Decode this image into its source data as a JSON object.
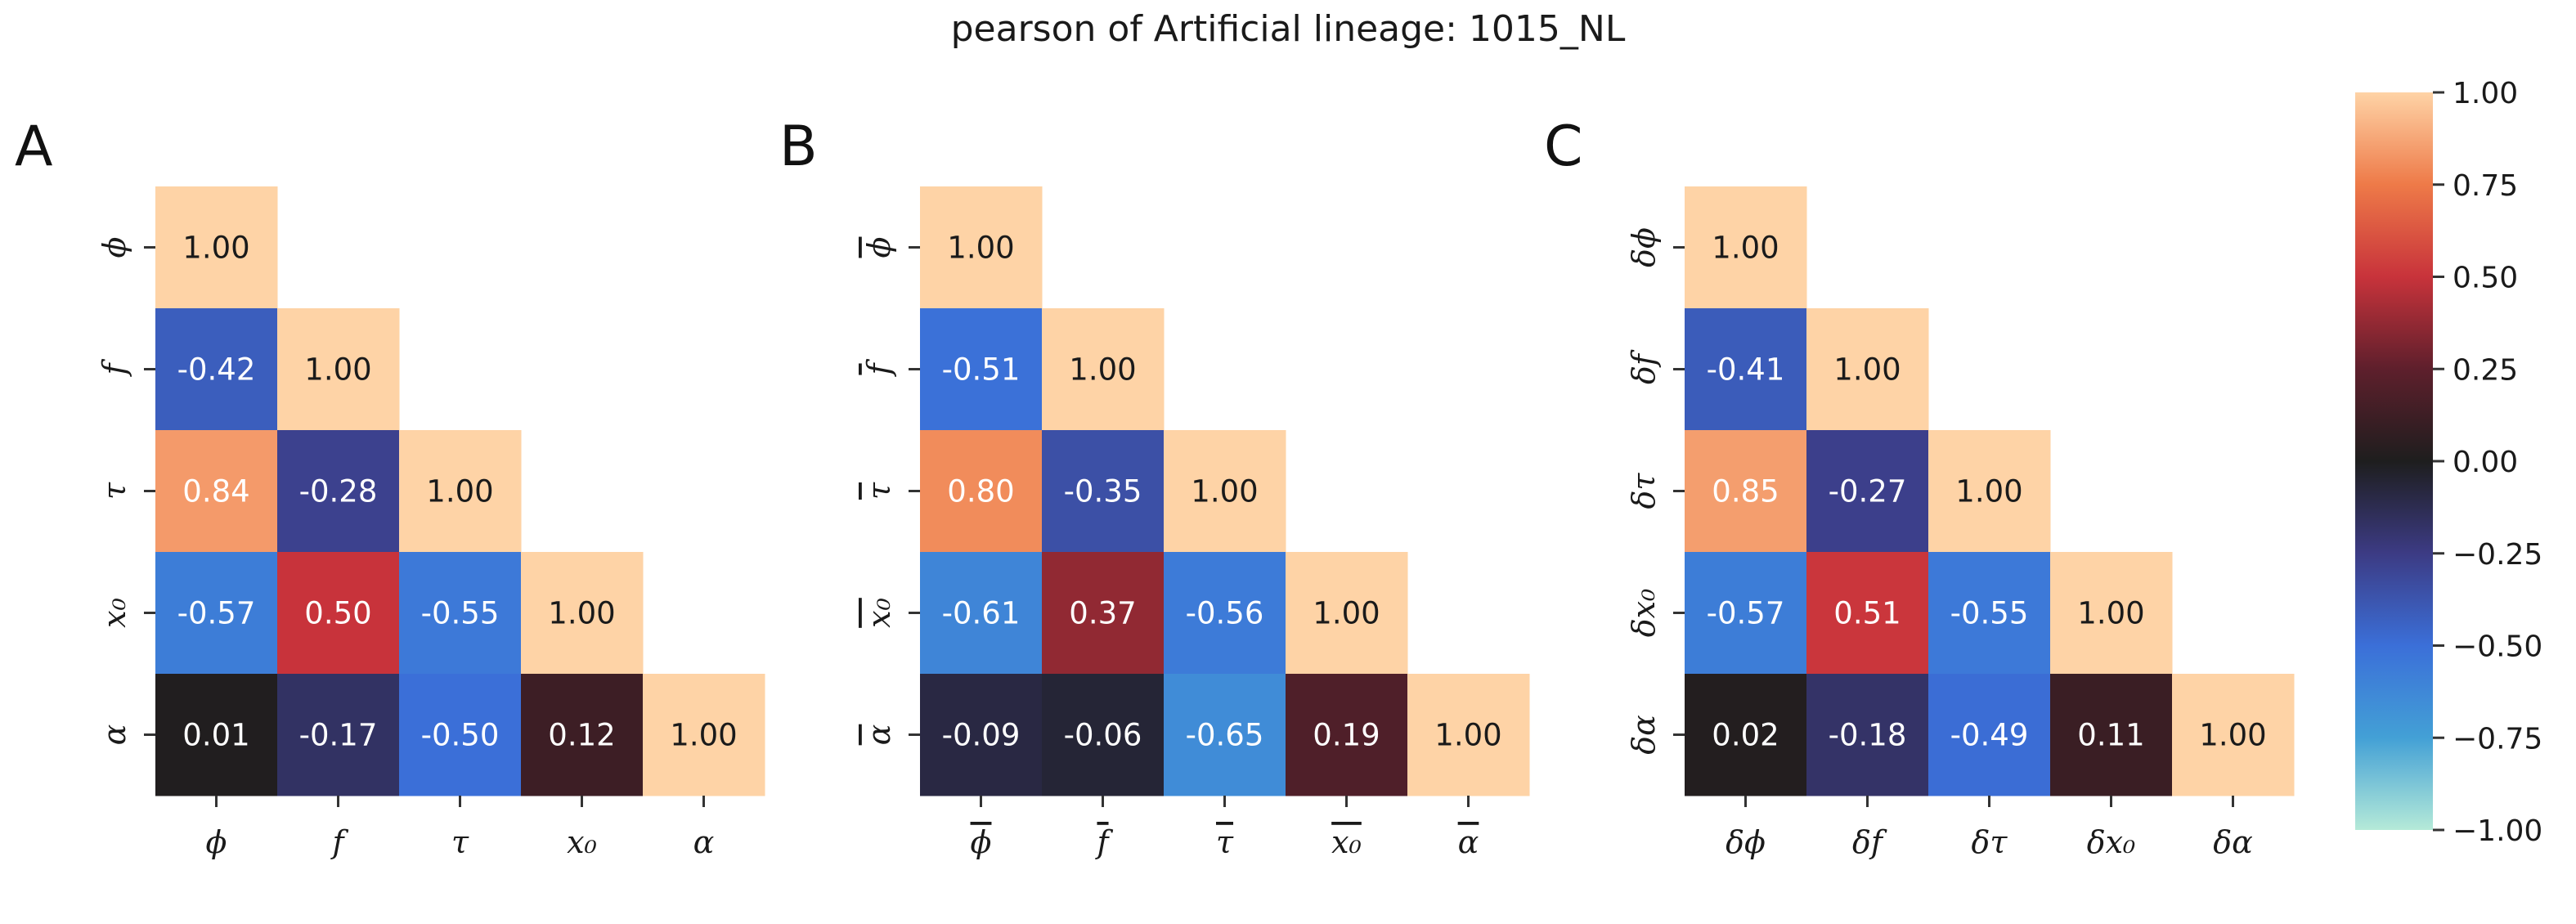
{
  "title": "pearson of Artificial lineage: 1015_NL",
  "chart_data": [
    {
      "type": "heatmap",
      "panel_label": "A",
      "labels": [
        "ϕ",
        "f",
        "τ",
        "x₀",
        "α"
      ],
      "label_overline": false,
      "matrix": [
        [
          1.0,
          null,
          null,
          null,
          null
        ],
        [
          -0.42,
          1.0,
          null,
          null,
          null
        ],
        [
          0.84,
          -0.28,
          1.0,
          null,
          null
        ],
        [
          -0.57,
          0.5,
          -0.55,
          1.0,
          null
        ],
        [
          0.01,
          -0.17,
          -0.5,
          0.12,
          1.0
        ]
      ]
    },
    {
      "type": "heatmap",
      "panel_label": "B",
      "labels": [
        "ϕ",
        "f",
        "τ",
        "x₀",
        "α"
      ],
      "label_overline": true,
      "matrix": [
        [
          1.0,
          null,
          null,
          null,
          null
        ],
        [
          -0.51,
          1.0,
          null,
          null,
          null
        ],
        [
          0.8,
          -0.35,
          1.0,
          null,
          null
        ],
        [
          -0.61,
          0.37,
          -0.56,
          1.0,
          null
        ],
        [
          -0.09,
          -0.06,
          -0.65,
          0.19,
          1.0
        ]
      ]
    },
    {
      "type": "heatmap",
      "panel_label": "C",
      "labels": [
        "δϕ",
        "δf",
        "δτ",
        "δx₀",
        "δα"
      ],
      "label_overline": false,
      "matrix": [
        [
          1.0,
          null,
          null,
          null,
          null
        ],
        [
          -0.41,
          1.0,
          null,
          null,
          null
        ],
        [
          0.85,
          -0.27,
          1.0,
          null,
          null
        ],
        [
          -0.57,
          0.51,
          -0.55,
          1.0,
          null
        ],
        [
          0.02,
          -0.18,
          -0.49,
          0.11,
          1.0
        ]
      ]
    }
  ],
  "colorbar": {
    "vmin": -1.0,
    "vmax": 1.0,
    "ticks": [
      "1.00",
      "0.75",
      "0.50",
      "0.25",
      "0.00",
      "−0.25",
      "−0.50",
      "−0.75",
      "−1.00"
    ],
    "colormap": "icefire",
    "stops": [
      [
        -1.0,
        "#b5ead8"
      ],
      [
        -0.75,
        "#43a0d6"
      ],
      [
        -0.5,
        "#3b6fd8"
      ],
      [
        -0.25,
        "#3c3b84"
      ],
      [
        0.0,
        "#1e1e1e"
      ],
      [
        0.25,
        "#5e1f2c"
      ],
      [
        0.5,
        "#c8333b"
      ],
      [
        0.75,
        "#ee7a48"
      ],
      [
        1.0,
        "#fed3a6"
      ]
    ]
  }
}
